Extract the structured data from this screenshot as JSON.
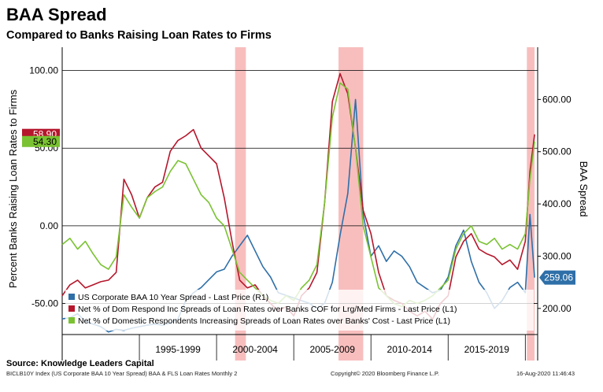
{
  "header": {
    "title": "BAA Spread",
    "subtitle": "Compared to Banks Raising Loan Rates to Firms"
  },
  "source": "Source: Knowledge Leaders Capital",
  "footer": {
    "left": "BICLB10Y Index (US Corporate BAA 10 Year Spread) BAA & FLS Loan Rates  Monthly 2",
    "center": "Copyright© 2020 Bloomberg Finance L.P.",
    "right": "16-Aug-2020 11:46:43"
  },
  "chart_data": {
    "type": "line",
    "ylabel_left": "Percent Banks Raising Loan Rates to Firms",
    "ylabel_right": "BAA Spread",
    "ylim_left": [
      -70,
      115
    ],
    "ylim_right": [
      150,
      700
    ],
    "yticks_left": [
      "100.00",
      "50.00",
      "0.00",
      "-50.00"
    ],
    "yticks_left_values": [
      100,
      50,
      0,
      -50
    ],
    "yticks_right": [
      "600.00",
      "500.00",
      "400.00",
      "300.00",
      "200.00"
    ],
    "yticks_right_values": [
      600,
      500,
      400,
      300,
      200
    ],
    "x_periods": [
      "1995-1999",
      "2000-2004",
      "2005-2009",
      "2010-2014",
      "2015-2019"
    ],
    "xlim": [
      1990,
      2020.8
    ],
    "recessions": [
      [
        2001.2,
        2001.9
      ],
      [
        2007.9,
        2009.5
      ],
      [
        2020.1,
        2020.6
      ]
    ],
    "last_values": [
      {
        "label": "58.90",
        "value": 58.9,
        "axis": "left",
        "color": "#b5162b"
      },
      {
        "label": "54.30",
        "value": 54.3,
        "axis": "left",
        "color": "#7ac232"
      },
      {
        "label": "259.06",
        "value": 259.06,
        "axis": "right",
        "color": "#2e6fa8"
      }
    ],
    "legend_position": "bottom-left",
    "series": [
      {
        "name": "US Corporate BAA 10 Year Spread - Last Price (R1)",
        "axis": "right",
        "color": "#2e6fa8",
        "x": [
          1990,
          1990.5,
          1991,
          1991.5,
          1992,
          1992.5,
          1993,
          1993.5,
          1994,
          1994.5,
          1995,
          1995.5,
          1996,
          1996.5,
          1997,
          1997.5,
          1998,
          1998.5,
          1999,
          1999.5,
          2000,
          2000.5,
          2001,
          2001.5,
          2002,
          2002.5,
          2003,
          2003.5,
          2004,
          2004.5,
          2005,
          2005.5,
          2006,
          2006.5,
          2007,
          2007.5,
          2008,
          2008.5,
          2009,
          2009.5,
          2010,
          2010.5,
          2011,
          2011.5,
          2012,
          2012.5,
          2013,
          2013.5,
          2014,
          2014.5,
          2015,
          2015.5,
          2016,
          2016.5,
          2017,
          2017.5,
          2018,
          2018.5,
          2019,
          2019.5,
          2020,
          2020.3,
          2020.6
        ],
        "values": [
          180,
          182,
          190,
          175,
          170,
          165,
          155,
          160,
          158,
          162,
          165,
          168,
          170,
          168,
          172,
          180,
          215,
          230,
          240,
          255,
          270,
          275,
          300,
          320,
          340,
          310,
          280,
          260,
          230,
          225,
          220,
          215,
          210,
          200,
          210,
          250,
          340,
          420,
          600,
          380,
          300,
          320,
          290,
          310,
          300,
          280,
          250,
          240,
          230,
          235,
          260,
          320,
          350,
          290,
          250,
          230,
          200,
          215,
          240,
          250,
          230,
          380,
          259
        ]
      },
      {
        "name": "Net % of Dom Respond Inc Spreads of Loan Rates over Banks COF for Lrg/Med Firms - Last Price (L1)",
        "axis": "left",
        "color": "#b5162b",
        "x": [
          1990,
          1990.5,
          1991,
          1991.5,
          1992,
          1992.5,
          1993,
          1993.5,
          1994,
          1994.5,
          1995,
          1995.5,
          1996,
          1996.5,
          1997,
          1997.5,
          1998,
          1998.5,
          1999,
          1999.5,
          2000,
          2000.5,
          2001,
          2001.5,
          2002,
          2002.5,
          2003,
          2003.5,
          2004,
          2004.5,
          2005,
          2005.5,
          2006,
          2006.5,
          2007,
          2007.5,
          2008,
          2008.5,
          2009,
          2009.5,
          2010,
          2010.5,
          2011,
          2011.5,
          2012,
          2012.5,
          2013,
          2013.5,
          2014,
          2014.5,
          2015,
          2015.5,
          2016,
          2016.5,
          2017,
          2017.5,
          2018,
          2018.5,
          2019,
          2019.5,
          2020,
          2020.3,
          2020.6
        ],
        "values": [
          -45,
          -38,
          -35,
          -40,
          -38,
          -36,
          -35,
          -30,
          30,
          20,
          5,
          18,
          25,
          28,
          48,
          55,
          58,
          62,
          50,
          45,
          40,
          18,
          -10,
          -35,
          -40,
          -38,
          -45,
          -50,
          -55,
          -52,
          -58,
          -45,
          -40,
          -30,
          15,
          80,
          98,
          85,
          50,
          10,
          -5,
          -30,
          -45,
          -48,
          -50,
          -55,
          -58,
          -55,
          -60,
          -50,
          -45,
          -20,
          -10,
          -5,
          -15,
          -18,
          -20,
          -25,
          -22,
          -28,
          -10,
          35,
          58.9
        ]
      },
      {
        "name": "Net % of Domestic Respondents Increasing Spreads of Loan Rates over Banks' Cost - Last Price (L1)",
        "axis": "left",
        "color": "#7ac232",
        "x": [
          1990,
          1990.5,
          1991,
          1991.5,
          1992,
          1992.5,
          1993,
          1993.5,
          1994,
          1994.5,
          1995,
          1995.5,
          1996,
          1996.5,
          1997,
          1997.5,
          1998,
          1998.5,
          1999,
          1999.5,
          2000,
          2000.5,
          2001,
          2001.5,
          2002,
          2002.5,
          2003,
          2003.5,
          2004,
          2004.5,
          2005,
          2005.5,
          2006,
          2006.5,
          2007,
          2007.5,
          2008,
          2008.5,
          2009,
          2009.5,
          2010,
          2010.5,
          2011,
          2011.5,
          2012,
          2012.5,
          2013,
          2013.5,
          2014,
          2014.5,
          2015,
          2015.5,
          2016,
          2016.5,
          2017,
          2017.5,
          2018,
          2018.5,
          2019,
          2019.5,
          2020,
          2020.3,
          2020.6
        ],
        "values": [
          -12,
          -8,
          -15,
          -10,
          -18,
          -25,
          -28,
          -20,
          20,
          12,
          5,
          18,
          22,
          25,
          35,
          42,
          40,
          30,
          20,
          15,
          5,
          0,
          -15,
          -30,
          -35,
          -40,
          -45,
          -48,
          -50,
          -45,
          -48,
          -40,
          -35,
          -25,
          15,
          70,
          92,
          88,
          50,
          0,
          -20,
          -40,
          -45,
          -50,
          -52,
          -48,
          -50,
          -48,
          -45,
          -40,
          -35,
          -15,
          -5,
          0,
          -10,
          -12,
          -8,
          -15,
          -12,
          -15,
          -5,
          30,
          54.3
        ]
      }
    ]
  }
}
